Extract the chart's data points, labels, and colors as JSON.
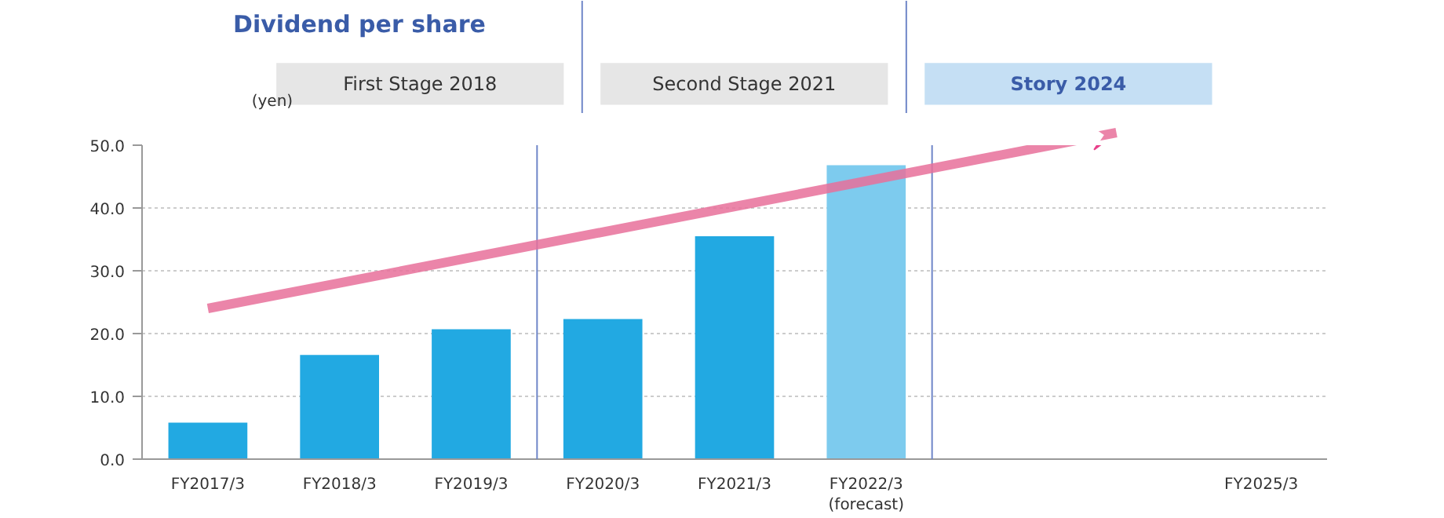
{
  "chart_data": {
    "type": "bar",
    "title": "Dividend per share",
    "ylabel": "(yen)",
    "categories": [
      "FY2017/3",
      "FY2018/3",
      "FY2019/3",
      "FY2020/3",
      "FY2021/3",
      "FY2022/3\n(forecast)",
      null,
      null,
      "FY2025/3"
    ],
    "values": [
      5.8,
      16.6,
      20.7,
      22.3,
      35.5,
      46.8,
      null,
      null,
      null
    ],
    "colors": [
      "#22a9e2",
      "#22a9e2",
      "#22a9e2",
      "#22a9e2",
      "#22a9e2",
      "#7dcbee",
      "#22a9e2",
      "#22a9e2",
      "#22a9e2"
    ],
    "ylim": [
      0,
      50
    ],
    "yticks": [
      {
        "value": 0,
        "label": "0.0"
      },
      {
        "value": 10,
        "label": "10.0"
      },
      {
        "value": 20,
        "label": "20.0"
      },
      {
        "value": 30,
        "label": "30.0"
      },
      {
        "value": 40,
        "label": "40.0"
      },
      {
        "value": 50,
        "label": "50.0"
      }
    ],
    "grid": "y",
    "annotations": [
      "First Stage 2018",
      "Second Stage 2021",
      "Story 2024"
    ]
  }
}
